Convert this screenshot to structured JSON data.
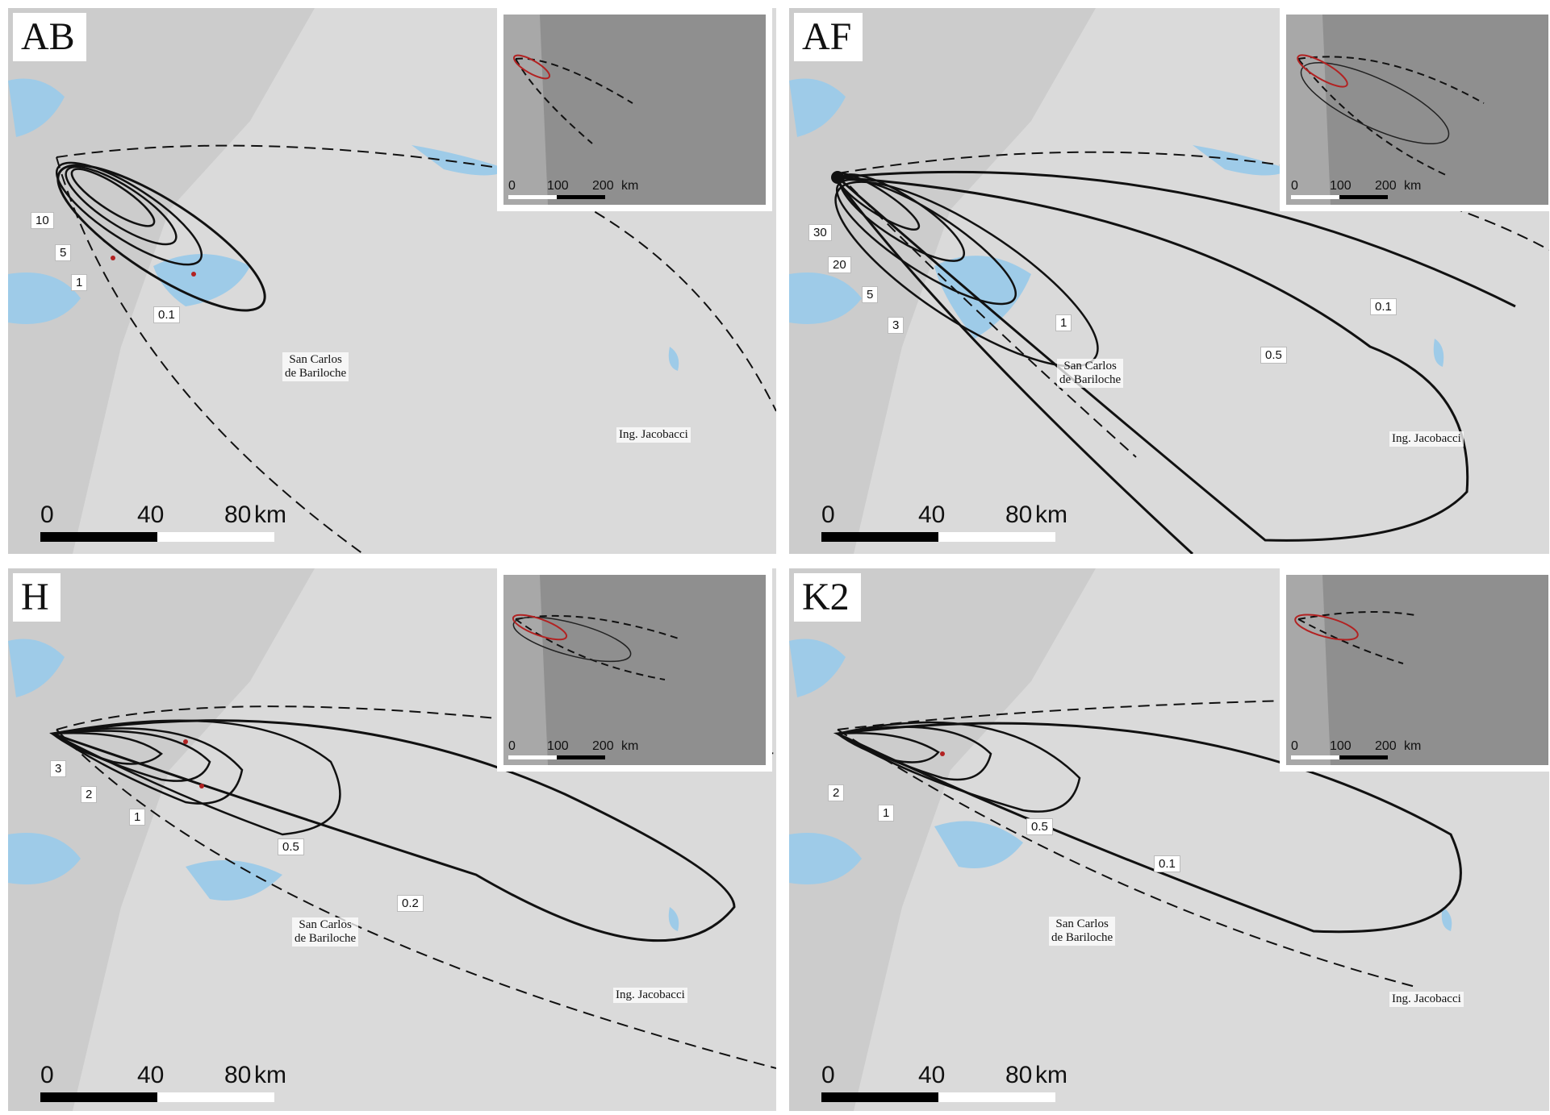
{
  "panels": [
    {
      "id": "AB",
      "label": "AB",
      "scale": {
        "t0": "0",
        "t40": "40",
        "t80": "80",
        "unit": "km"
      },
      "inset_scale": {
        "t0": "0",
        "t100": "100",
        "t200": "200",
        "unit": "km"
      },
      "contour_labels": [
        "10",
        "5",
        "1",
        "0.1"
      ],
      "places": {
        "bariloche_1": "San Carlos",
        "bariloche_2": "de Bariloche",
        "jacobacci": "Ing. Jacobacci"
      }
    },
    {
      "id": "AF",
      "label": "AF",
      "scale": {
        "t0": "0",
        "t40": "40",
        "t80": "80",
        "unit": "km"
      },
      "inset_scale": {
        "t0": "0",
        "t100": "100",
        "t200": "200",
        "unit": "km"
      },
      "contour_labels": [
        "30",
        "20",
        "5",
        "3",
        "1",
        "0.5",
        "0.1"
      ],
      "places": {
        "bariloche_1": "San Carlos",
        "bariloche_2": "de Bariloche",
        "jacobacci": "Ing. Jacobacci"
      }
    },
    {
      "id": "H",
      "label": "H",
      "scale": {
        "t0": "0",
        "t40": "40",
        "t80": "80",
        "unit": "km"
      },
      "inset_scale": {
        "t0": "0",
        "t100": "100",
        "t200": "200",
        "unit": "km"
      },
      "contour_labels": [
        "3",
        "2",
        "1",
        "0.5",
        "0.2"
      ],
      "places": {
        "bariloche_1": "San Carlos",
        "bariloche_2": "de Bariloche",
        "jacobacci": "Ing. Jacobacci"
      }
    },
    {
      "id": "K2",
      "label": "K2",
      "scale": {
        "t0": "0",
        "t40": "40",
        "t80": "80",
        "unit": "km"
      },
      "inset_scale": {
        "t0": "0",
        "t100": "100",
        "t200": "200",
        "unit": "km"
      },
      "contour_labels": [
        "2",
        "1",
        "0.5",
        "0.1"
      ],
      "places": {
        "bariloche_1": "San Carlos",
        "bariloche_2": "de Bariloche",
        "jacobacci": "Ing. Jacobacci"
      }
    }
  ],
  "colors": {
    "terrain": "#d9d9d9",
    "lake": "#9ecbe8",
    "contour": "#111111",
    "inset_bg": "#8d8d8d",
    "deposit": "#b22222"
  }
}
